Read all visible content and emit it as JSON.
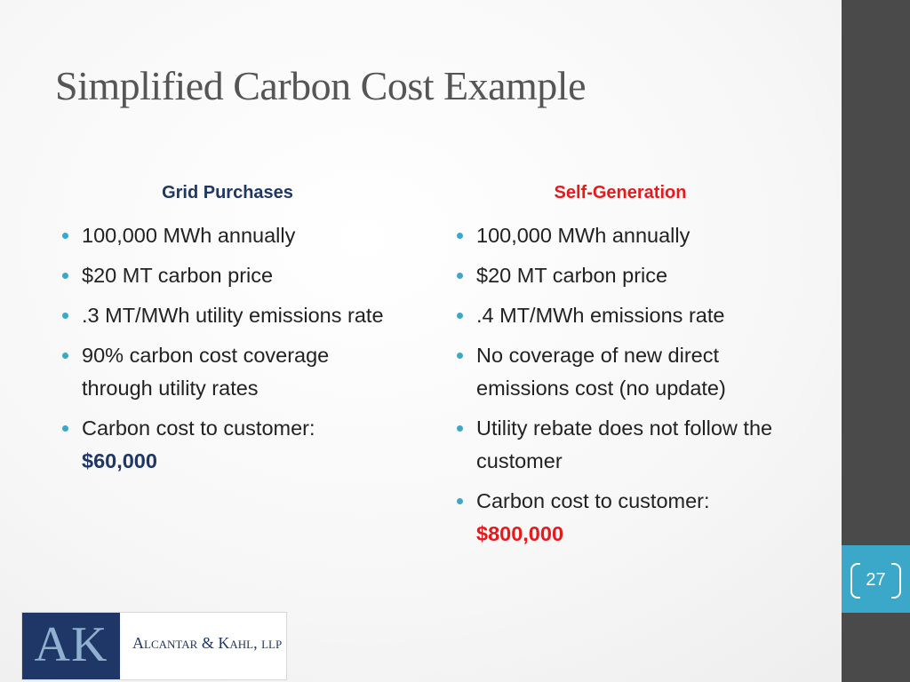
{
  "title": "Simplified Carbon Cost Example",
  "slide_number": "27",
  "left_column": {
    "heading": "Grid Purchases",
    "bullets": [
      "100,000 MWh annually",
      "$20 MT carbon price",
      ".3 MT/MWh utility emissions rate",
      "90% carbon cost coverage through utility rates",
      "Carbon cost to customer:"
    ],
    "cost_value": "$60,000"
  },
  "right_column": {
    "heading": "Self-Generation",
    "bullets": [
      "100,000 MWh annually",
      "$20 MT carbon price",
      ".4 MT/MWh emissions rate",
      "No coverage of new direct emissions cost (no update)",
      "Utility rebate does not follow the customer",
      "Carbon cost to customer:"
    ],
    "cost_value": "$800,000"
  },
  "logo": {
    "mark": "AK",
    "name": "Alcantar & Kahl, llp"
  },
  "colors": {
    "accent_teal": "#3ba8c9",
    "dark_bar": "#4a4a4a",
    "grid_blue": "#1f3766",
    "selfgen_red": "#e8191b"
  }
}
